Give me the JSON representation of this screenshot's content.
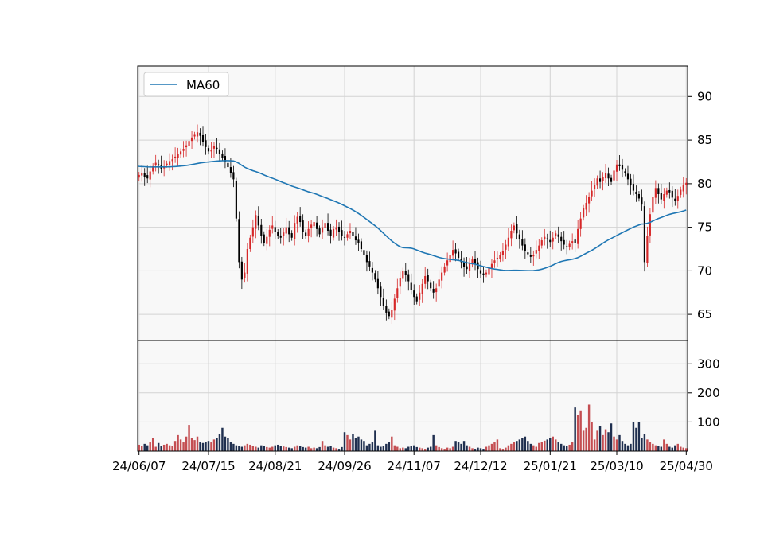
{
  "chart_data": {
    "type": "candlestick",
    "ma_legend": "MA60",
    "colors": {
      "up": "#d62728",
      "down": "#000000",
      "ma": "#1f77b4",
      "grid": "#d3d3d3",
      "panel_bg": "#f8f8f8",
      "vol_up": "#c44e52",
      "vol_down": "#1f2f4f"
    },
    "x_tick_labels": [
      "24/06/07",
      "24/07/15",
      "24/08/21",
      "24/09/26",
      "24/11/07",
      "24/12/12",
      "25/01/21",
      "25/03/10",
      "25/04/30"
    ],
    "price_axis": {
      "ylim": [
        62,
        93.5
      ],
      "ticks": [
        65,
        70,
        75,
        80,
        85,
        90
      ]
    },
    "volume_axis": {
      "ylim": [
        0,
        380
      ],
      "ticks": [
        100,
        200,
        300
      ]
    },
    "closes": [
      81.0,
      81.2,
      80.8,
      80.6,
      81.4,
      82.0,
      82.4,
      82.2,
      81.7,
      82.0,
      82.3,
      82.6,
      82.8,
      83.1,
      83.4,
      83.7,
      84.0,
      84.4,
      84.9,
      85.3,
      85.6,
      85.9,
      85.5,
      84.8,
      84.2,
      83.7,
      83.9,
      84.3,
      84.0,
      83.4,
      83.0,
      82.5,
      81.9,
      81.2,
      80.5,
      76.0,
      71.0,
      69.0,
      69.8,
      72.5,
      73.8,
      75.0,
      76.4,
      75.2,
      74.0,
      73.2,
      73.9,
      74.7,
      75.2,
      74.5,
      74.0,
      73.8,
      74.4,
      75.0,
      74.2,
      73.8,
      75.5,
      76.2,
      75.6,
      74.5,
      74.0,
      74.8,
      75.3,
      75.6,
      74.8,
      74.2,
      75.0,
      75.5,
      74.6,
      74.0,
      74.8,
      75.0,
      74.5,
      74.0,
      73.8,
      74.2,
      74.6,
      74.0,
      73.5,
      73.2,
      72.5,
      71.8,
      71.0,
      70.5,
      69.8,
      69.0,
      68.0,
      67.0,
      66.0,
      65.2,
      64.8,
      65.5,
      66.8,
      68.0,
      69.2,
      70.0,
      69.5,
      68.8,
      67.8,
      67.0,
      66.5,
      67.5,
      68.5,
      69.4,
      68.8,
      68.0,
      67.5,
      68.0,
      69.0,
      69.8,
      70.5,
      71.2,
      71.8,
      72.4,
      72.0,
      71.5,
      71.0,
      70.4,
      70.2,
      70.8,
      71.3,
      70.8,
      70.2,
      69.7,
      69.5,
      69.8,
      70.3,
      70.8,
      71.2,
      71.5,
      71.8,
      72.3,
      73.0,
      73.8,
      74.6,
      75.2,
      74.3,
      73.6,
      72.9,
      72.3,
      71.9,
      71.6,
      71.8,
      72.4,
      72.9,
      73.5,
      73.9,
      73.6,
      73.3,
      73.8,
      74.3,
      73.9,
      73.4,
      73.0,
      72.8,
      73.1,
      73.4,
      73.2,
      74.8,
      76.0,
      77.2,
      77.8,
      78.5,
      79.2,
      79.9,
      80.6,
      80.2,
      80.8,
      81.2,
      80.6,
      80.2,
      81.5,
      82.2,
      82.0,
      81.6,
      81.2,
      80.5,
      79.8,
      79.2,
      78.8,
      78.3,
      77.6,
      71.0,
      74.0,
      76.5,
      78.5,
      79.5,
      78.8,
      78.2,
      78.8,
      79.2,
      79.0,
      78.4,
      78.0,
      78.6,
      79.3,
      79.9,
      80.1
    ],
    "volumes": [
      22,
      18,
      25,
      20,
      30,
      45,
      15,
      28,
      18,
      22,
      25,
      20,
      18,
      35,
      55,
      40,
      30,
      50,
      90,
      45,
      38,
      50,
      30,
      28,
      32,
      35,
      30,
      40,
      45,
      60,
      80,
      50,
      45,
      30,
      25,
      20,
      18,
      15,
      20,
      25,
      22,
      18,
      15,
      12,
      20,
      18,
      14,
      12,
      15,
      20,
      22,
      18,
      16,
      14,
      12,
      10,
      15,
      20,
      18,
      14,
      12,
      15,
      10,
      12,
      10,
      14,
      35,
      20,
      15,
      18,
      12,
      10,
      8,
      14,
      65,
      55,
      40,
      60,
      45,
      50,
      40,
      35,
      20,
      25,
      30,
      70,
      20,
      15,
      18,
      25,
      30,
      50,
      20,
      15,
      10,
      12,
      10,
      15,
      18,
      20,
      14,
      12,
      10,
      8,
      12,
      15,
      55,
      20,
      14,
      10,
      8,
      12,
      10,
      15,
      35,
      30,
      25,
      35,
      20,
      15,
      10,
      8,
      12,
      10,
      8,
      15,
      20,
      25,
      30,
      40,
      10,
      8,
      12,
      20,
      25,
      30,
      35,
      40,
      45,
      50,
      35,
      25,
      20,
      15,
      28,
      32,
      36,
      40,
      45,
      50,
      40,
      30,
      25,
      20,
      18,
      22,
      30,
      150,
      125,
      140,
      70,
      80,
      160,
      100,
      40,
      70,
      85,
      55,
      75,
      65,
      95,
      50,
      40,
      55,
      35,
      25,
      20,
      25,
      100,
      80,
      100,
      45,
      60,
      40,
      30,
      25,
      20,
      18,
      15,
      40,
      25,
      15,
      12,
      20,
      25,
      15,
      12,
      10
    ]
  }
}
